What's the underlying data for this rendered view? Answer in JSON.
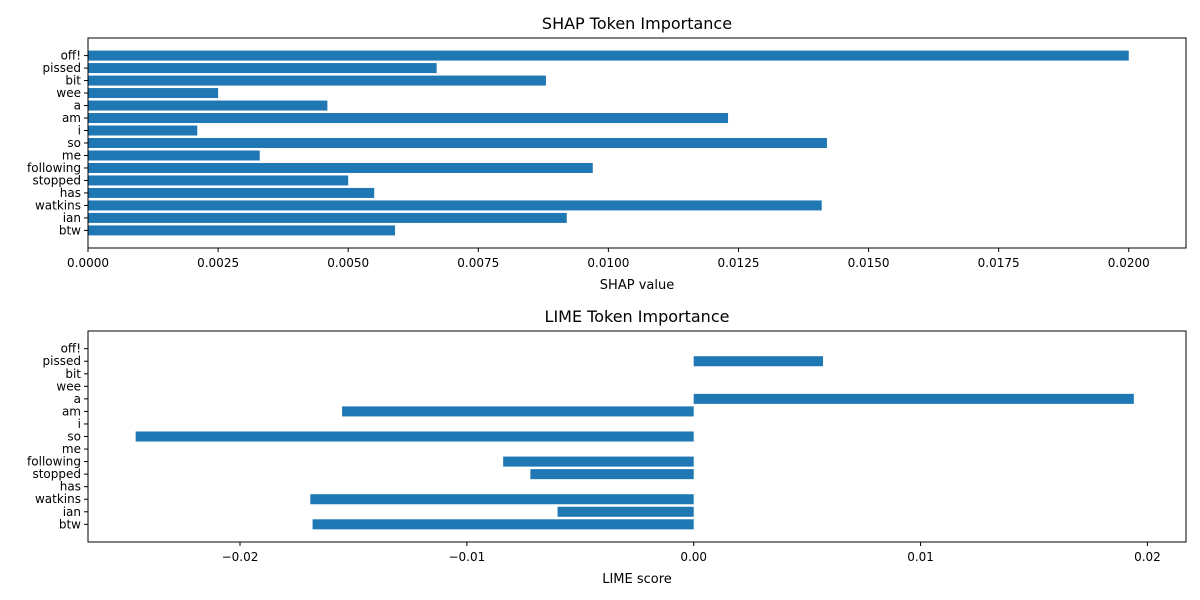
{
  "chart_data": [
    {
      "type": "bar",
      "orientation": "horizontal",
      "title": "SHAP Token Importance",
      "xlabel": "SHAP value",
      "ylabel": "",
      "xlim": [
        0,
        0.0211
      ],
      "xticks": [
        0,
        0.0025,
        0.005,
        0.0075,
        0.01,
        0.0125,
        0.015,
        0.0175,
        0.02
      ],
      "xtick_labels": [
        "0.0000",
        "0.0025",
        "0.0050",
        "0.0075",
        "0.0100",
        "0.0125",
        "0.0150",
        "0.0175",
        "0.0200"
      ],
      "categories": [
        "off!",
        "pissed",
        "bit",
        "wee",
        "a",
        "am",
        "i",
        "so",
        "me",
        "following",
        "stopped",
        "has",
        "watkins",
        "ian",
        "btw"
      ],
      "values": [
        0.02,
        0.0067,
        0.0088,
        0.0025,
        0.0046,
        0.0123,
        0.0021,
        0.0142,
        0.0033,
        0.0097,
        0.005,
        0.0055,
        0.0141,
        0.0092,
        0.0059
      ],
      "color": "#1f77b4",
      "grid": false
    },
    {
      "type": "bar",
      "orientation": "horizontal",
      "title": "LIME Token Importance",
      "xlabel": "LIME score",
      "ylabel": "",
      "xlim": [
        -0.0267,
        0.0217
      ],
      "xticks": [
        -0.02,
        -0.01,
        0,
        0.01,
        0.02
      ],
      "xtick_labels": [
        "−0.02",
        "−0.01",
        "0.00",
        "0.01",
        "0.02"
      ],
      "categories": [
        "off!",
        "pissed",
        "bit",
        "wee",
        "a",
        "am",
        "i",
        "so",
        "me",
        "following",
        "stopped",
        "has",
        "watkins",
        "ian",
        "btw"
      ],
      "values": [
        0,
        0.0057,
        0,
        0,
        0.0194,
        -0.0155,
        0,
        -0.0246,
        0,
        -0.0084,
        -0.0072,
        0,
        -0.0169,
        -0.006,
        -0.0168
      ],
      "color": "#1f77b4",
      "grid": false
    }
  ]
}
